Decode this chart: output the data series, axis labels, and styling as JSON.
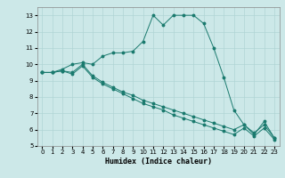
{
  "xlabel": "Humidex (Indice chaleur)",
  "ylabel": "",
  "background_color": "#cce8e8",
  "grid_color": "#b0d4d4",
  "line_color": "#1a7a6e",
  "xlim": [
    -0.5,
    23.5
  ],
  "ylim": [
    5,
    13.5
  ],
  "x_ticks": [
    0,
    1,
    2,
    3,
    4,
    5,
    6,
    7,
    8,
    9,
    10,
    11,
    12,
    13,
    14,
    15,
    16,
    17,
    18,
    19,
    20,
    21,
    22,
    23
  ],
  "y_ticks": [
    5,
    6,
    7,
    8,
    9,
    10,
    11,
    12,
    13
  ],
  "curve1_x": [
    0,
    1,
    2,
    3,
    4,
    5,
    6,
    7,
    8,
    9,
    10,
    11,
    12,
    13,
    14,
    15,
    16,
    17,
    18,
    19,
    20,
    21,
    22,
    23
  ],
  "curve1_y": [
    9.5,
    9.5,
    9.7,
    10.0,
    10.1,
    10.0,
    10.5,
    10.7,
    10.7,
    10.8,
    11.4,
    13.0,
    12.4,
    13.0,
    13.0,
    13.0,
    12.5,
    11.0,
    9.2,
    7.2,
    6.3,
    5.7,
    6.5,
    5.5
  ],
  "curve2_x": [
    0,
    1,
    2,
    3,
    4,
    5,
    6,
    7,
    8,
    9,
    10,
    11,
    12,
    13,
    14,
    15,
    16,
    17,
    18,
    19,
    20,
    21,
    22,
    23
  ],
  "curve2_y": [
    9.5,
    9.5,
    9.6,
    9.5,
    10.0,
    9.3,
    8.9,
    8.6,
    8.3,
    8.1,
    7.8,
    7.6,
    7.4,
    7.2,
    7.0,
    6.8,
    6.6,
    6.4,
    6.2,
    6.0,
    6.3,
    5.8,
    6.3,
    5.5
  ],
  "curve3_x": [
    0,
    1,
    2,
    3,
    4,
    5,
    6,
    7,
    8,
    9,
    10,
    11,
    12,
    13,
    14,
    15,
    16,
    17,
    18,
    19,
    20,
    21,
    22,
    23
  ],
  "curve3_y": [
    9.5,
    9.5,
    9.6,
    9.4,
    9.9,
    9.2,
    8.8,
    8.5,
    8.2,
    7.9,
    7.6,
    7.4,
    7.2,
    6.9,
    6.7,
    6.5,
    6.3,
    6.1,
    5.9,
    5.7,
    6.1,
    5.6,
    6.1,
    5.4
  ],
  "tick_fontsize": 5,
  "xlabel_fontsize": 6,
  "marker_size": 1.8,
  "linewidth": 0.7
}
